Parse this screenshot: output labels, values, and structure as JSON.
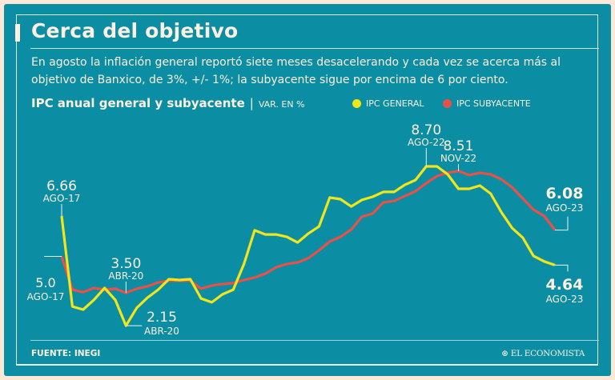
{
  "header": {
    "title": "Cerca del objetivo",
    "subtitle": "En agosto la inflación general reportó siete meses desacelerando y cada vez se acerca más al objetivo de Banxico, de 3%, +/- 1%;  la subyacente sigue por encima de 6 por ciento."
  },
  "footer": {
    "source": "FUENTE: INEGI",
    "brand": "EL ECONOMISTA"
  },
  "colors": {
    "background": "#0b8ea4",
    "border": "#fbe8d6",
    "text": "#fdf0e0",
    "general": "#f2e51a",
    "subyacente": "#e8504a"
  },
  "chart_data": {
    "type": "line",
    "title": "IPC anual general y subyacente",
    "unit": "VAR. EN %",
    "legend_position": "top-right",
    "grid": false,
    "ylim": [
      1.5,
      9.2
    ],
    "series": [
      {
        "name": "IPC GENERAL",
        "color": "#f2e51a",
        "values": [
          6.66,
          2.94,
          2.81,
          3.21,
          3.7,
          3.21,
          2.15,
          2.88,
          3.3,
          3.63,
          4.06,
          4.03,
          4.06,
          3.27,
          3.11,
          3.44,
          3.63,
          4.69,
          6.07,
          5.9,
          5.9,
          5.8,
          5.57,
          5.94,
          6.23,
          7.42,
          7.35,
          7.05,
          7.32,
          7.45,
          7.65,
          7.65,
          7.94,
          8.14,
          8.7,
          8.7,
          8.37,
          7.78,
          7.78,
          7.91,
          7.58,
          6.82,
          6.17,
          5.77,
          5.02,
          4.79,
          4.64
        ]
      },
      {
        "name": "IPC SUBYACENTE",
        "color": "#e8504a",
        "values": [
          5.0,
          3.63,
          3.53,
          3.7,
          3.63,
          3.67,
          3.5,
          3.67,
          3.77,
          3.93,
          4.0,
          4.0,
          4.0,
          3.67,
          3.8,
          3.86,
          3.9,
          4.03,
          4.13,
          4.29,
          4.55,
          4.69,
          4.75,
          4.92,
          5.25,
          5.61,
          5.8,
          6.1,
          6.63,
          6.76,
          7.22,
          7.28,
          7.48,
          7.68,
          8.01,
          8.3,
          8.44,
          8.51,
          8.34,
          8.44,
          8.37,
          8.17,
          7.84,
          7.38,
          6.92,
          6.66,
          6.08
        ]
      }
    ],
    "annotations": [
      {
        "series": 0,
        "index": 0,
        "value": "6.66",
        "date": "AGO-17",
        "pos": "above"
      },
      {
        "series": 1,
        "index": 0,
        "value": "5.0",
        "date": "AGO-17",
        "pos": "left"
      },
      {
        "series": 1,
        "index": 6,
        "value": "3.50",
        "date": "ABR-20",
        "pos": "above"
      },
      {
        "series": 0,
        "index": 6,
        "value": "2.15",
        "date": "ABR-20",
        "pos": "right"
      },
      {
        "series": 0,
        "index": 34,
        "value": "8.70",
        "date": "AGO-22",
        "pos": "above"
      },
      {
        "series": 1,
        "index": 37,
        "value": "8.51",
        "date": "NOV-22",
        "pos": "above"
      },
      {
        "series": 1,
        "index": 46,
        "value": "6.08",
        "date": "AGO-23",
        "pos": "end-above"
      },
      {
        "series": 0,
        "index": 46,
        "value": "4.64",
        "date": "AGO-23",
        "pos": "end-below"
      }
    ]
  }
}
